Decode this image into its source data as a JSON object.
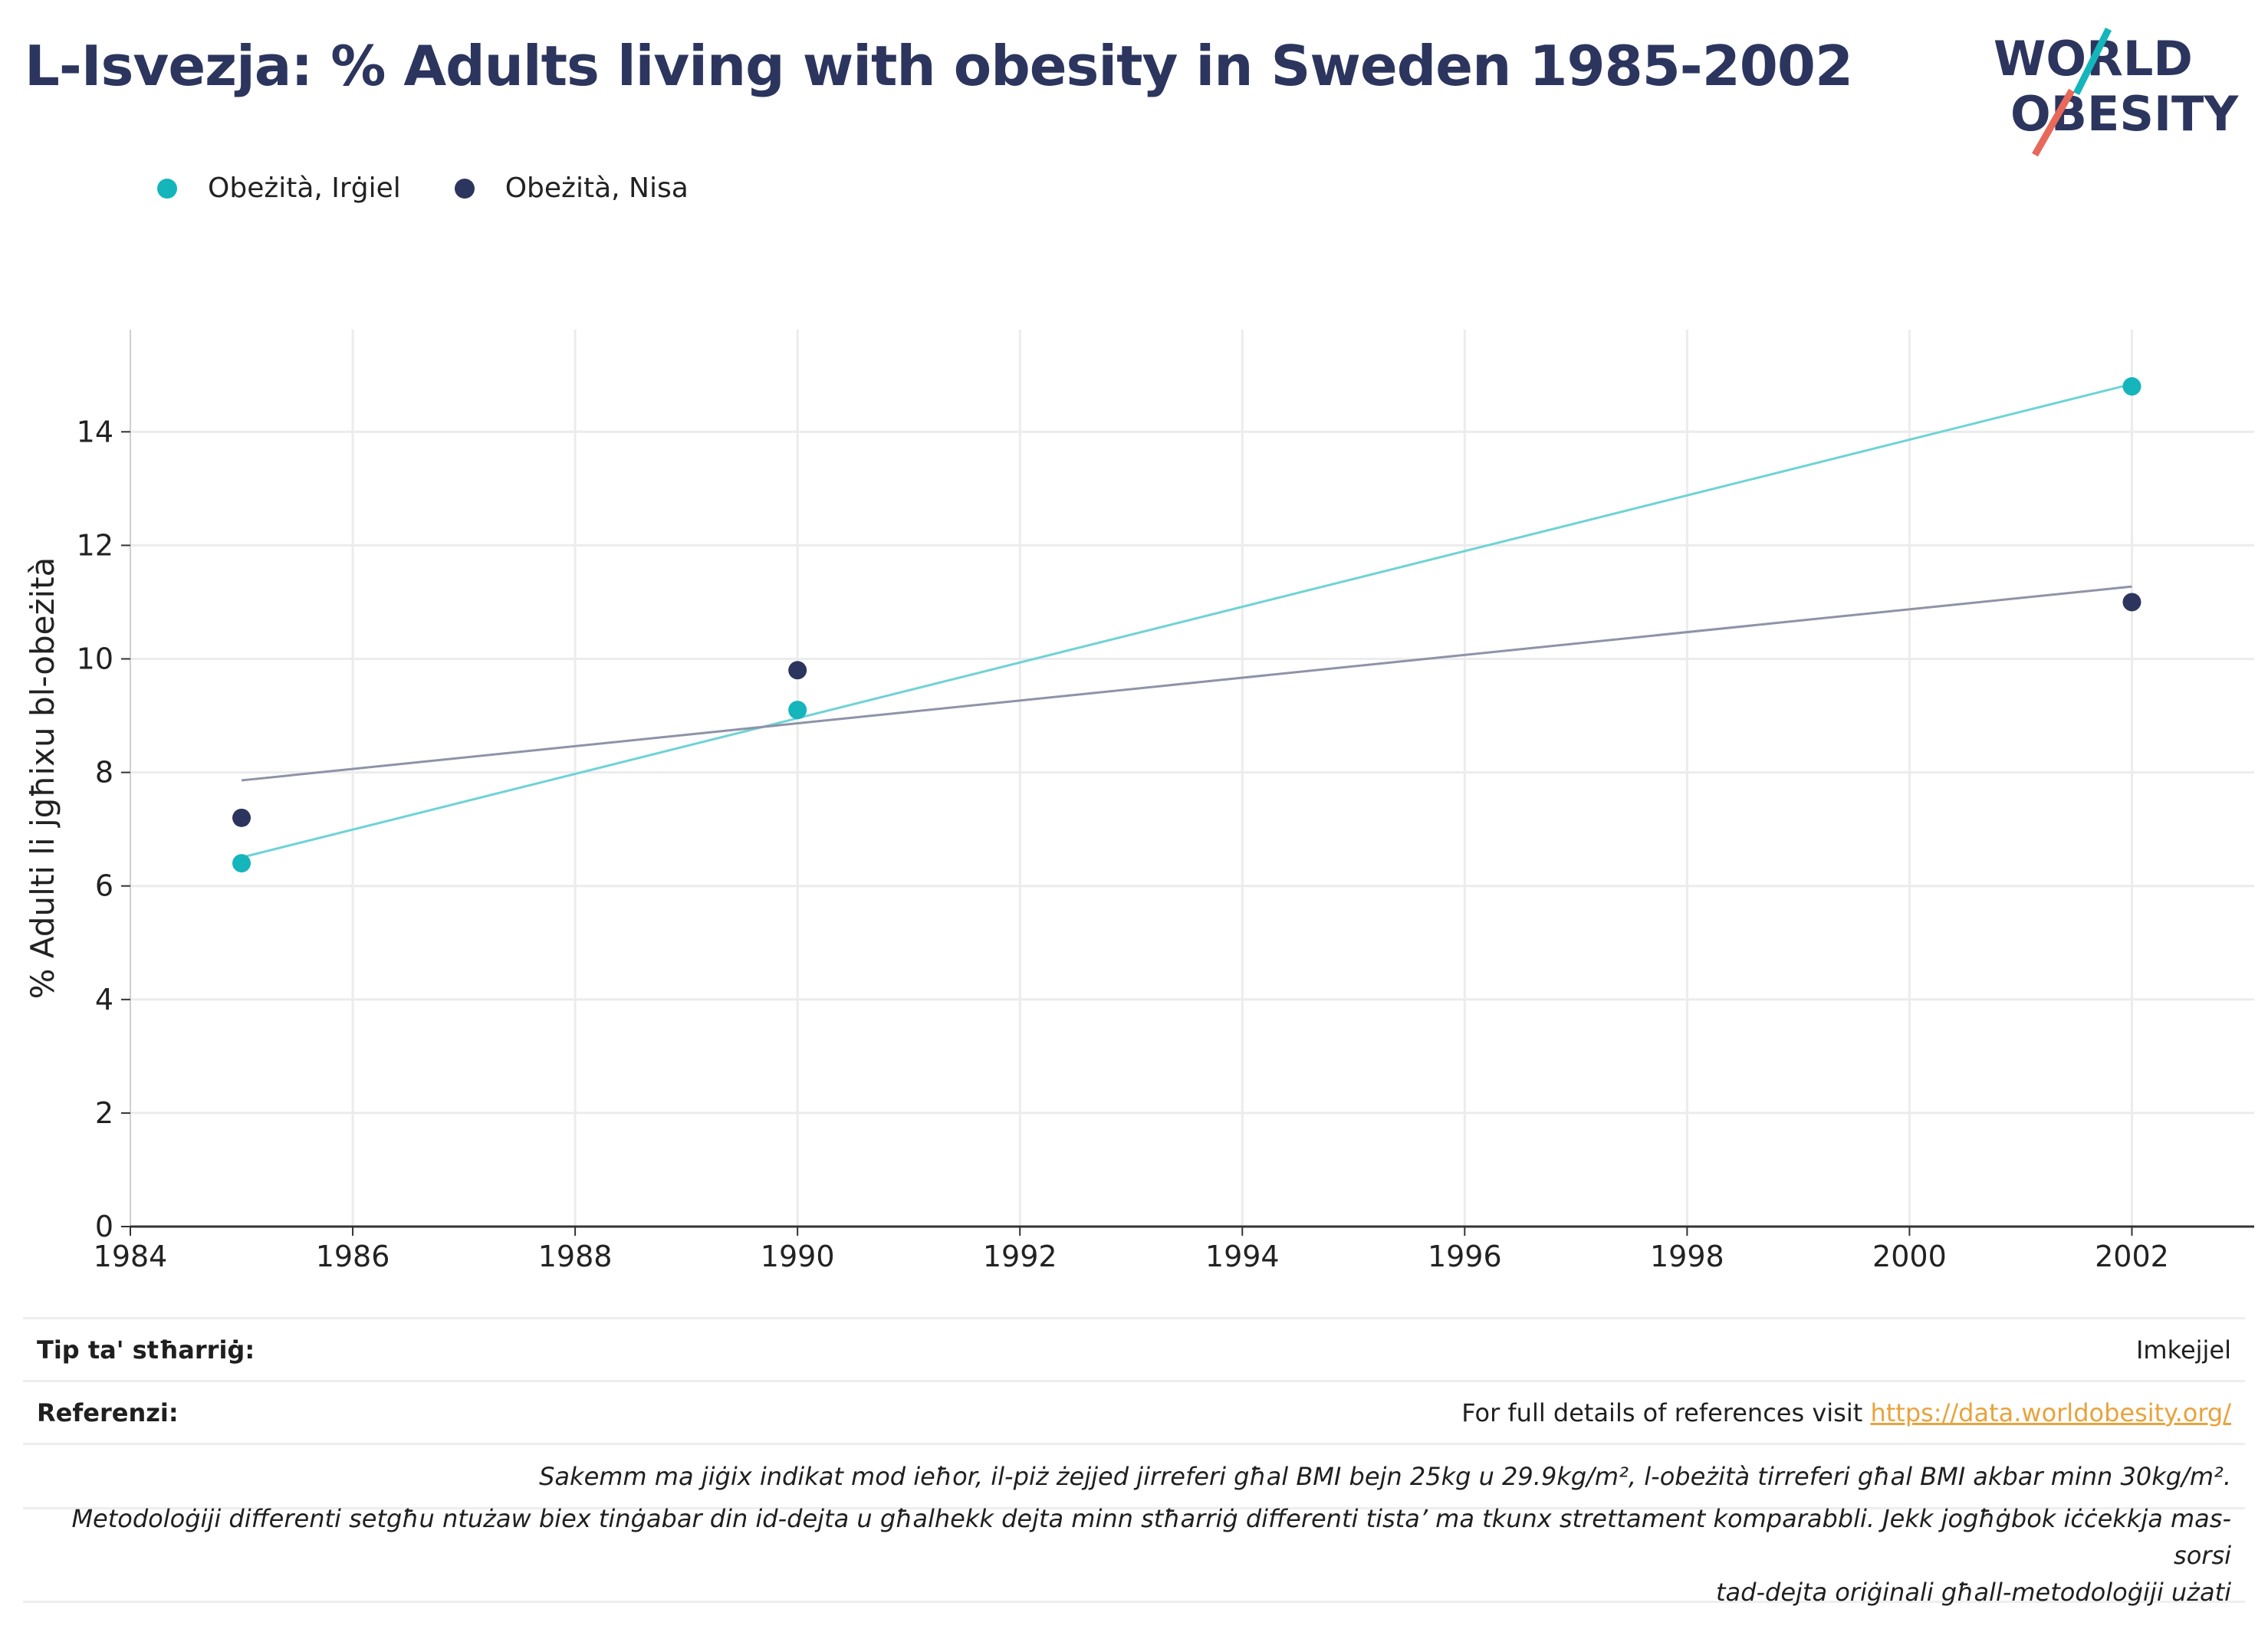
{
  "title": "L-Isvezja: % Adults living with obesity in Sweden 1985-2002",
  "logo": {
    "line1": "WORLD",
    "line2": "OBESITY"
  },
  "colors": {
    "men": "#14b5bb",
    "women": "#2c355e",
    "men_trend": "#6fd3d6",
    "women_trend": "#8e93a8",
    "title": "#2c355e",
    "link": "#e8a33c",
    "grid": "#ececec"
  },
  "chart_data": {
    "type": "scatter",
    "title": "",
    "xlabel": "",
    "ylabel": "% Adulti li jgħixu bl-obeżità",
    "xlim": [
      1984,
      1998.9,
      2003.1
    ],
    "xlim_note": "",
    "xrange": [
      1984,
      2003.1
    ],
    "ylim": [
      0,
      15.8
    ],
    "xticks": [
      1984,
      1986,
      1988,
      1990,
      1992,
      1994,
      1996,
      1998,
      2000,
      2002
    ],
    "yticks": [
      0,
      2,
      4,
      6,
      8,
      10,
      12,
      14
    ],
    "grid": true,
    "legend_position": "top-left",
    "trendlines": true,
    "series": [
      {
        "name": "Obeżità, Irġiel",
        "color": "#14b5bb",
        "trend_color": "#6fd3d6",
        "points": [
          {
            "x": 1985,
            "y": 6.4
          },
          {
            "x": 1990,
            "y": 9.1
          },
          {
            "x": 2002,
            "y": 14.8
          }
        ]
      },
      {
        "name": "Obeżità, Nisa",
        "color": "#2c355e",
        "trend_color": "#8e93a8",
        "points": [
          {
            "x": 1985,
            "y": 7.2
          },
          {
            "x": 1990,
            "y": 9.8
          },
          {
            "x": 2002,
            "y": 11.0
          }
        ]
      }
    ]
  },
  "footer": {
    "survey_label": "Tip ta' stħarriġ:",
    "survey_value": "Imkejjel",
    "refs_label": "Referenzi:",
    "refs_text": "For full details of references visit ",
    "refs_link": "https://data.worldobesity.org/",
    "note1": "Sakemm ma jiġix indikat mod ieħor, il-piż żejjed jirreferi għal BMI bejn 25kg u 29.9kg/m², l-obeżità tirreferi għal BMI akbar minn 30kg/m².",
    "note2_line1": "Metodoloġiji differenti setgħu ntużaw biex tinġabar din id-dejta u għalhekk dejta minn stħarriġ differenti tista’ ma tkunx strettament komparabbli. Jekk jogħġbok iċċekkja mas-sorsi",
    "note2_line2": "tad-dejta oriġinali għall-metodoloġiji użati"
  }
}
